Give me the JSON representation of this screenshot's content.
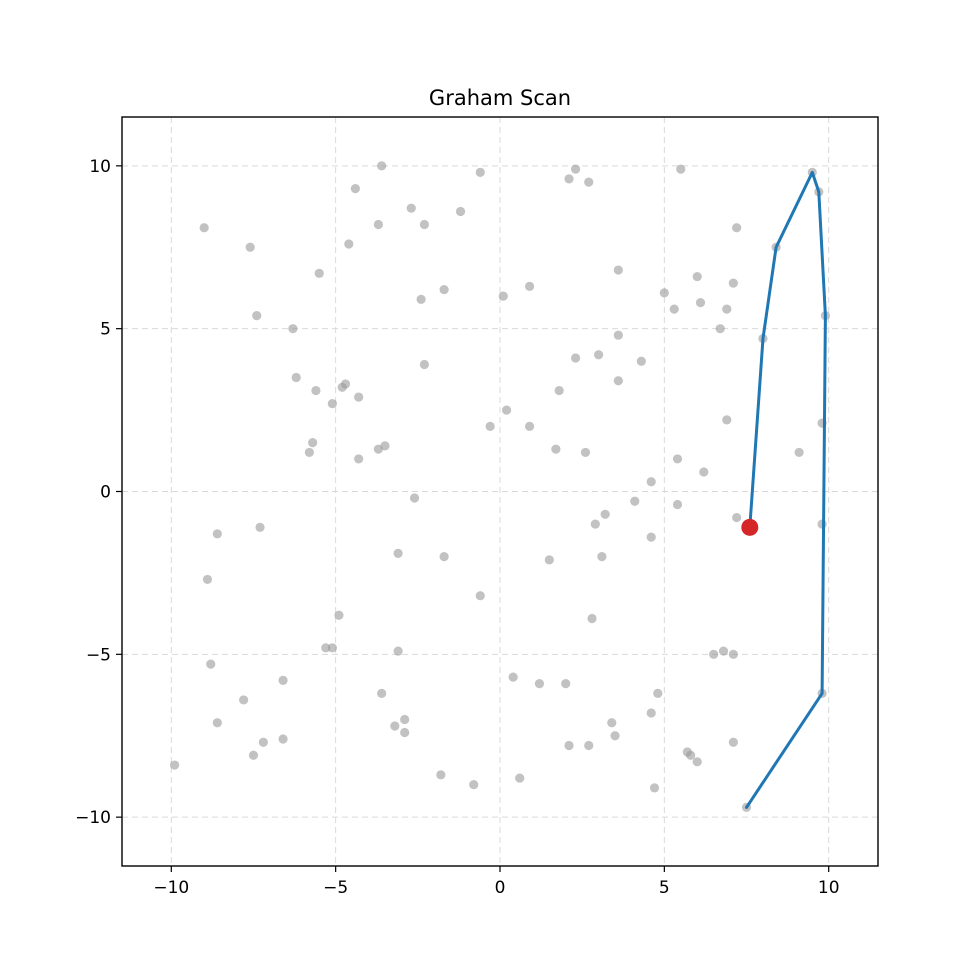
{
  "chart_data": {
    "type": "scatter",
    "title": "Graham Scan",
    "xlabel": "",
    "ylabel": "",
    "xlim": [
      -11.5,
      11.5
    ],
    "ylim": [
      -11.5,
      11.5
    ],
    "x_ticks": [
      -10,
      -5,
      0,
      5,
      10
    ],
    "y_ticks": [
      -10,
      -5,
      0,
      5,
      10
    ],
    "x_tick_labels": [
      "−10",
      "−5",
      "0",
      "5",
      "10"
    ],
    "y_tick_labels": [
      "−10",
      "−5",
      "0",
      "5",
      "10"
    ],
    "grid": true,
    "colors": {
      "points": "#999999",
      "hull": "#1f77b4",
      "current": "#d62728"
    },
    "series": [
      {
        "type": "scatter",
        "points": [
          [
            -9.9,
            -8.4
          ],
          [
            -9.0,
            8.1
          ],
          [
            -8.9,
            -2.7
          ],
          [
            -8.8,
            -5.3
          ],
          [
            -8.6,
            -1.3
          ],
          [
            -8.6,
            -7.1
          ],
          [
            -7.8,
            -6.4
          ],
          [
            -7.6,
            7.5
          ],
          [
            -7.5,
            -8.1
          ],
          [
            -7.4,
            5.4
          ],
          [
            -7.3,
            -1.1
          ],
          [
            -7.2,
            -7.7
          ],
          [
            -6.6,
            -5.8
          ],
          [
            -6.6,
            -7.6
          ],
          [
            -6.3,
            5.0
          ],
          [
            -6.2,
            3.5
          ],
          [
            -5.8,
            1.2
          ],
          [
            -5.7,
            1.5
          ],
          [
            -5.6,
            3.1
          ],
          [
            -5.5,
            6.7
          ],
          [
            -5.3,
            -4.8
          ],
          [
            -5.1,
            2.7
          ],
          [
            -5.1,
            -4.8
          ],
          [
            -4.9,
            -3.8
          ],
          [
            -4.8,
            3.2
          ],
          [
            -4.7,
            3.3
          ],
          [
            -4.6,
            7.6
          ],
          [
            -4.4,
            9.3
          ],
          [
            -4.3,
            1.0
          ],
          [
            -4.3,
            2.9
          ],
          [
            -3.7,
            1.3
          ],
          [
            -3.7,
            8.2
          ],
          [
            -3.6,
            10.0
          ],
          [
            -3.6,
            -6.2
          ],
          [
            -3.5,
            1.4
          ],
          [
            -3.2,
            -7.2
          ],
          [
            -3.1,
            -1.9
          ],
          [
            -3.1,
            -4.9
          ],
          [
            -2.9,
            -7.0
          ],
          [
            -2.9,
            -7.4
          ],
          [
            -2.7,
            8.7
          ],
          [
            -2.6,
            -0.2
          ],
          [
            -2.4,
            5.9
          ],
          [
            -2.3,
            3.9
          ],
          [
            -2.3,
            8.2
          ],
          [
            -1.8,
            -8.7
          ],
          [
            -1.7,
            6.2
          ],
          [
            -1.7,
            -2.0
          ],
          [
            -1.2,
            8.6
          ],
          [
            -0.8,
            -9.0
          ],
          [
            -0.6,
            9.8
          ],
          [
            -0.6,
            -3.2
          ],
          [
            -0.3,
            2.0
          ],
          [
            0.1,
            6.0
          ],
          [
            0.2,
            2.5
          ],
          [
            0.4,
            -5.7
          ],
          [
            0.6,
            -8.8
          ],
          [
            0.9,
            6.3
          ],
          [
            0.9,
            2.0
          ],
          [
            1.2,
            -5.9
          ],
          [
            1.5,
            -2.1
          ],
          [
            1.7,
            1.3
          ],
          [
            1.8,
            3.1
          ],
          [
            2.0,
            -5.9
          ],
          [
            2.1,
            -7.8
          ],
          [
            2.1,
            9.6
          ],
          [
            2.3,
            9.9
          ],
          [
            2.3,
            4.1
          ],
          [
            2.6,
            1.2
          ],
          [
            2.7,
            9.5
          ],
          [
            2.7,
            -7.8
          ],
          [
            2.8,
            -3.9
          ],
          [
            2.9,
            -1.0
          ],
          [
            3.0,
            4.2
          ],
          [
            3.1,
            -2.0
          ],
          [
            3.2,
            -0.7
          ],
          [
            3.4,
            -7.1
          ],
          [
            3.5,
            -7.5
          ],
          [
            3.6,
            6.8
          ],
          [
            3.6,
            4.8
          ],
          [
            3.6,
            3.4
          ],
          [
            4.1,
            -0.3
          ],
          [
            4.3,
            4.0
          ],
          [
            4.6,
            0.3
          ],
          [
            4.6,
            -1.4
          ],
          [
            4.6,
            -6.8
          ],
          [
            4.7,
            -9.1
          ],
          [
            4.8,
            -6.2
          ],
          [
            5.0,
            6.1
          ],
          [
            5.3,
            5.6
          ],
          [
            5.4,
            1.0
          ],
          [
            5.4,
            -0.4
          ],
          [
            5.5,
            9.9
          ],
          [
            5.7,
            -8.0
          ],
          [
            5.8,
            -8.1
          ],
          [
            6.0,
            6.6
          ],
          [
            6.0,
            -8.3
          ],
          [
            6.1,
            5.8
          ],
          [
            6.2,
            0.6
          ],
          [
            6.5,
            -5.0
          ],
          [
            6.7,
            5.0
          ],
          [
            6.8,
            -4.9
          ],
          [
            6.9,
            2.2
          ],
          [
            6.9,
            5.6
          ],
          [
            7.1,
            -7.7
          ],
          [
            7.1,
            -5.0
          ],
          [
            7.1,
            6.4
          ],
          [
            7.2,
            8.1
          ],
          [
            7.2,
            -0.8
          ],
          [
            8.0,
            4.7
          ],
          [
            8.4,
            7.5
          ],
          [
            9.1,
            1.2
          ],
          [
            9.5,
            9.8
          ],
          [
            9.7,
            9.2
          ],
          [
            9.8,
            -1.0
          ],
          [
            9.8,
            2.1
          ],
          [
            9.8,
            -6.2
          ],
          [
            9.9,
            5.4
          ],
          [
            7.5,
            -9.7
          ]
        ]
      },
      {
        "type": "line",
        "points": [
          [
            7.5,
            -9.7
          ],
          [
            9.8,
            -6.2
          ],
          [
            9.9,
            5.4
          ],
          [
            9.7,
            9.2
          ],
          [
            9.5,
            9.8
          ],
          [
            8.4,
            7.5
          ],
          [
            8.0,
            4.7
          ],
          [
            7.6,
            -1.1
          ]
        ]
      },
      {
        "type": "scatter",
        "points": [
          [
            7.6,
            -1.1
          ]
        ]
      }
    ]
  }
}
